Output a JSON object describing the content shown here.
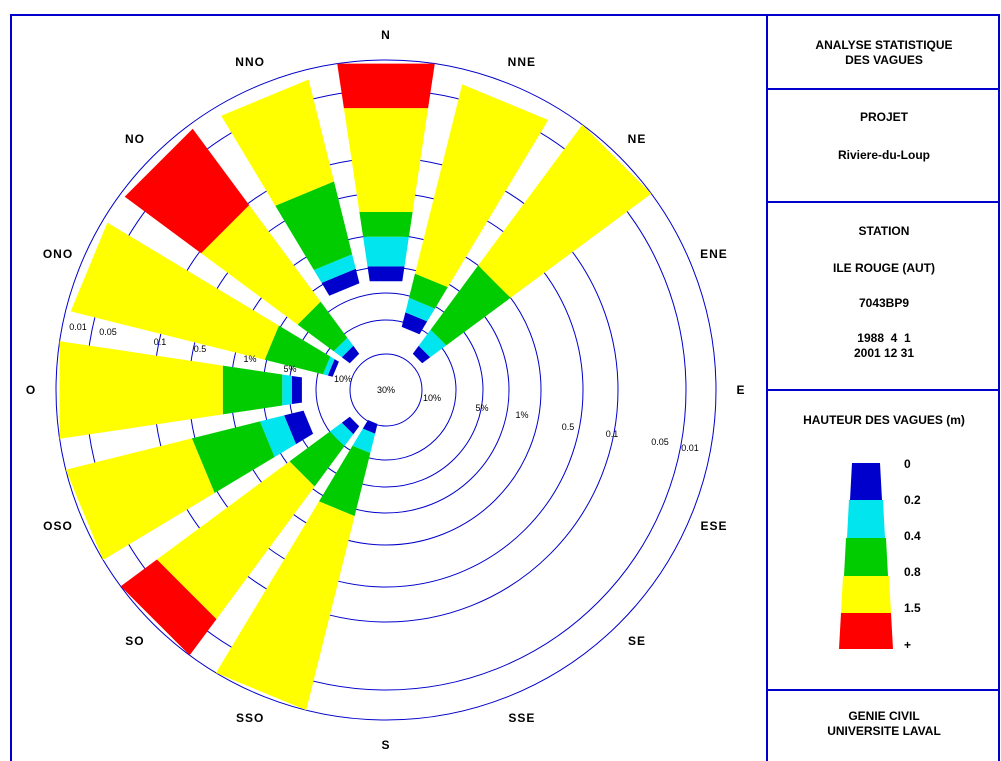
{
  "chart_data": {
    "type": "rose",
    "directions": [
      "N",
      "NNE",
      "NE",
      "ENE",
      "E",
      "ESE",
      "SE",
      "SSE",
      "S",
      "SSO",
      "SO",
      "OSO",
      "O",
      "ONO",
      "NO",
      "NNO"
    ],
    "height_classes": [
      "0",
      "0.2",
      "0.4",
      "0.8",
      "1.5",
      "+"
    ],
    "class_colors": [
      "#0000cc",
      "#00e5ee",
      "#00cc00",
      "#ffff00",
      "#ff0000"
    ],
    "ring_labels_west": [
      "0.01",
      "0.05",
      "0.1",
      "0.5",
      "1%",
      "5%",
      "10%"
    ],
    "ring_labels_east": [
      "30%",
      "10%",
      "5%",
      "1%",
      "0.5",
      "0.1",
      "0.05",
      "0.01"
    ],
    "segments": {
      "N": [
        [
          "0",
          "0.2"
        ],
        [
          "0.2",
          "0.5"
        ],
        [
          "0.5",
          "1"
        ],
        [
          "1",
          "5"
        ],
        [
          "5",
          "6"
        ]
      ],
      "NNE": [
        [
          "0",
          "0.2"
        ],
        [
          "0.2",
          "0.5"
        ],
        [
          "0.5",
          "1"
        ],
        [
          "1",
          "6"
        ]
      ],
      "NE": [
        [
          "0",
          "0.2"
        ],
        [
          "0.2",
          "0.5"
        ],
        [
          "0.5",
          "1"
        ],
        [
          "1",
          "6"
        ]
      ],
      "ENE": [],
      "E": [],
      "ESE": [],
      "SE": [],
      "SSE": [],
      "S": [],
      "SSO": [
        [
          "0",
          "0.2"
        ],
        [
          "0.5",
          "1"
        ],
        [
          "1",
          "6"
        ]
      ],
      "SO": [
        [
          "0",
          "0.2"
        ],
        [
          "0.2",
          "0.5"
        ],
        [
          "0.5",
          "1"
        ],
        [
          "1",
          "5"
        ],
        [
          "5",
          "6"
        ]
      ],
      "OSO": [
        [
          "0",
          "0.2"
        ],
        [
          "0.2",
          "0.5"
        ],
        [
          "0.5",
          "1"
        ],
        [
          "1",
          "5"
        ]
      ],
      "O": [
        [
          "0",
          "0.2"
        ],
        [
          "0.2",
          "0.5"
        ],
        [
          "0.5",
          "1"
        ],
        [
          "1",
          "6"
        ]
      ],
      "ONO": [
        [
          "0",
          "0.2"
        ],
        [
          "0.2",
          "0.5"
        ],
        [
          "0.5",
          "1"
        ],
        [
          "1",
          "6"
        ]
      ],
      "NO": [
        [
          "0",
          "0.2"
        ],
        [
          "0.2",
          "0.5"
        ],
        [
          "0.5",
          "1"
        ],
        [
          "1",
          "5"
        ],
        [
          "5",
          "6"
        ]
      ],
      "NNO": [
        [
          "0",
          "0.2"
        ],
        [
          "0.2",
          "0.5"
        ],
        [
          "0.5",
          "1"
        ],
        [
          "1",
          "6"
        ]
      ]
    }
  },
  "panel": {
    "title_line1": "ANALYSE STATISTIQUE",
    "title_line2": "DES VAGUES",
    "projet_label": "PROJET",
    "projet_value": "Riviere-du-Loup",
    "station_label": "STATION",
    "station_name": "ILE ROUGE (AUT)",
    "station_code": "7043BP9",
    "date_start": "1988  4  1",
    "date_end": "2001 12 31",
    "legend_title": "HAUTEUR DES VAGUES (m)",
    "legend_labels": [
      "0",
      "0.2",
      "0.4",
      "0.8",
      "1.5",
      "+"
    ],
    "footer_line1": "GENIE CIVIL",
    "footer_line2": "UNIVERSITE LAVAL"
  }
}
